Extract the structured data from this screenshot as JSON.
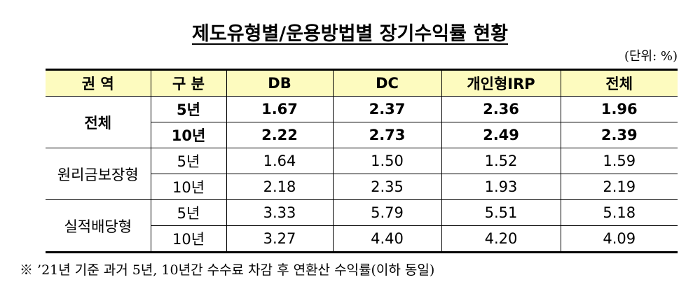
{
  "title": "제도유형별/운용방법별 장기수익률 현황",
  "unit": "(단위: %)",
  "table": {
    "header": [
      "권 역",
      "구 분",
      "DB",
      "DC",
      "개인형IRP",
      "전체"
    ],
    "groups": [
      {
        "region": "전체",
        "bold": true,
        "rows": [
          [
            "5년",
            "1.67",
            "2.37",
            "2.36",
            "1.96"
          ],
          [
            "10년",
            "2.22",
            "2.73",
            "2.49",
            "2.39"
          ]
        ]
      },
      {
        "region": "원리금보장형",
        "bold": false,
        "rows": [
          [
            "5년",
            "1.64",
            "1.50",
            "1.52",
            "1.59"
          ],
          [
            "10년",
            "2.18",
            "2.35",
            "1.93",
            "2.19"
          ]
        ]
      },
      {
        "region": "실적배당형",
        "bold": false,
        "rows": [
          [
            "5년",
            "3.33",
            "5.79",
            "5.51",
            "5.18"
          ],
          [
            "10년",
            "3.27",
            "4.40",
            "4.20",
            "4.09"
          ]
        ]
      }
    ]
  },
  "footnote": "※ ’21년 기준 과거 5년, 10년간 수수료 차감 후 연환산 수익률(이하 동일)"
}
